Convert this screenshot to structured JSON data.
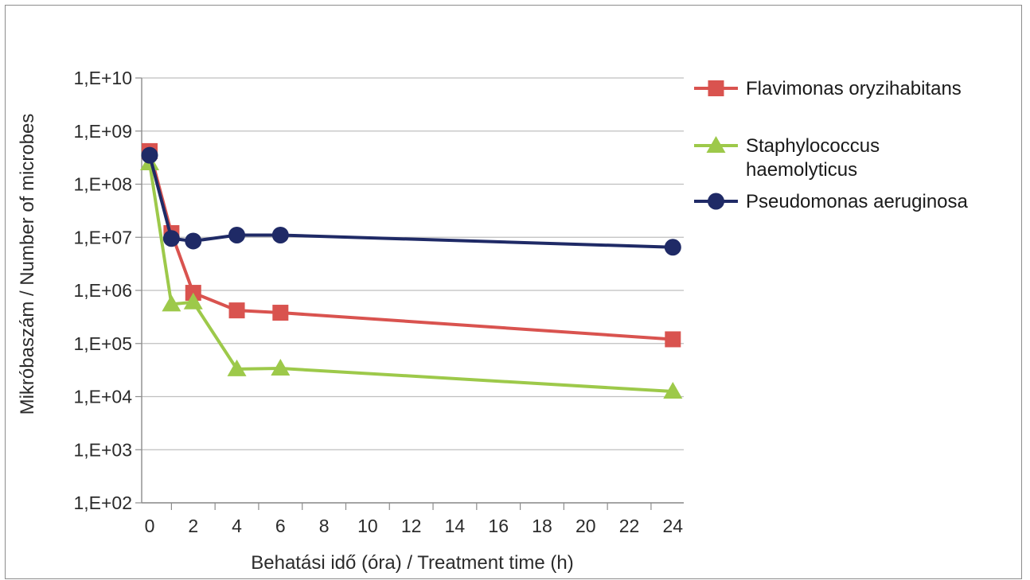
{
  "chart_data": {
    "type": "line",
    "title": "",
    "xlabel": "Behatási idő (óra) / Treatment time (h)",
    "ylabel": "Mikróbaszám / Number of microbes",
    "y_scale": "log",
    "ylim": [
      100,
      10000000000
    ],
    "x_ticks": [
      "0",
      "2",
      "4",
      "6",
      "8",
      "10",
      "12",
      "14",
      "16",
      "18",
      "20",
      "22",
      "24"
    ],
    "y_ticks": [
      "1,E+10",
      "1,E+09",
      "1,E+08",
      "1,E+07",
      "1,E+06",
      "1,E+05",
      "1,E+04",
      "1,E+03",
      "1,E+02"
    ],
    "y_tick_values": [
      10000000000,
      1000000000,
      100000000,
      10000000,
      1000000,
      100000,
      10000,
      1000,
      100
    ],
    "grid": "horizontal",
    "legend_position": "right",
    "series": [
      {
        "name": "Flavimonas oryzihabitans",
        "color": "#d9534f",
        "marker": "square",
        "x": [
          0,
          1,
          2,
          4,
          6,
          24
        ],
        "y": [
          420000000,
          12000000,
          900000,
          420000,
          380000,
          120000
        ]
      },
      {
        "name": "Staphylococcus haemolyticus",
        "name_lines": [
          "Staphylococcus",
          "haemolyticus"
        ],
        "color": "#9dc94a",
        "marker": "triangle",
        "x": [
          0,
          1,
          2,
          4,
          6,
          24
        ],
        "y": [
          250000000,
          550000,
          600000,
          33000,
          34000,
          12500
        ]
      },
      {
        "name": "Pseudomonas aeruginosa",
        "color": "#1f2a66",
        "marker": "circle",
        "x": [
          0,
          1,
          2,
          4,
          6,
          24
        ],
        "y": [
          350000000,
          9500000,
          8500000,
          11000000,
          11000000,
          6500000
        ]
      }
    ]
  }
}
